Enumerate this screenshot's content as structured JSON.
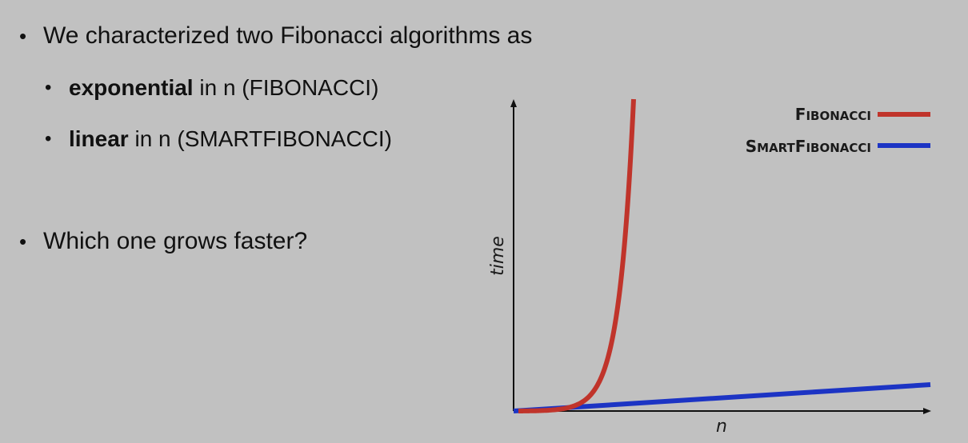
{
  "slide": {
    "bullets": [
      {
        "text": "We characterized two Fibonacci algorithms as"
      },
      {
        "bold": "exponential",
        "rest": " in n (FIBONACCI)"
      },
      {
        "bold": "linear",
        "rest": " in n (SMARTFIBONACCI)"
      },
      {
        "text": "Which one grows faster?"
      }
    ]
  },
  "chart_data": {
    "type": "line",
    "xlabel": "n",
    "ylabel": "time",
    "legend_position": "top-right",
    "series": [
      {
        "name": "Fibonacci",
        "name_cap": "F",
        "name_rest": "IBONACCI",
        "color": "#c0342b",
        "growth": "exponential"
      },
      {
        "name": "SmartFibonacci",
        "name_cap": "S",
        "name_cap2": "F",
        "name_rest": "MART",
        "name_rest2": "IBONACCI",
        "color": "#1c34c4",
        "growth": "linear"
      }
    ]
  }
}
